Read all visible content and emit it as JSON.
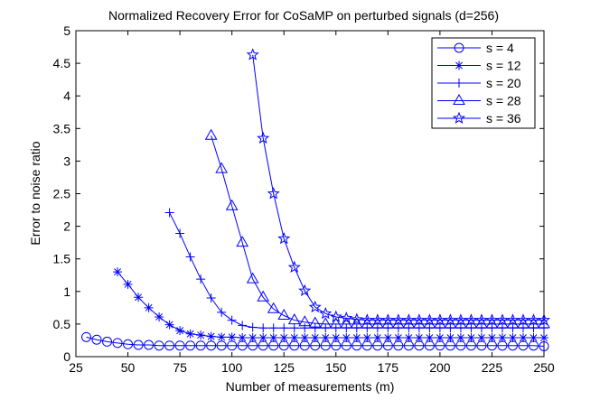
{
  "chart_data": {
    "type": "line",
    "title": "Normalized Recovery Error for CoSaMP on perturbed signals (d=256)",
    "xlabel": "Number of measurements (m)",
    "ylabel": "Error to noise ratio",
    "xlim": [
      25,
      250
    ],
    "ylim": [
      0,
      5
    ],
    "xticks": [
      25,
      50,
      75,
      100,
      125,
      150,
      175,
      200,
      225,
      250
    ],
    "yticks": [
      0,
      0.5,
      1,
      1.5,
      2,
      2.5,
      3,
      3.5,
      4,
      4.5,
      5
    ],
    "grid": false,
    "legend_position": "top-right",
    "color": "#0000ff",
    "series": [
      {
        "name": "s = 4",
        "marker": "circle",
        "x": [
          30,
          35,
          40,
          45,
          50,
          55,
          60,
          65,
          70,
          75,
          80,
          85,
          90,
          95,
          100,
          105,
          110,
          115,
          120,
          125,
          130,
          135,
          140,
          145,
          150,
          155,
          160,
          165,
          170,
          175,
          180,
          185,
          190,
          195,
          200,
          205,
          210,
          215,
          220,
          225,
          230,
          235,
          240,
          245,
          250
        ],
        "y": [
          0.3,
          0.26,
          0.23,
          0.21,
          0.19,
          0.18,
          0.18,
          0.17,
          0.17,
          0.17,
          0.17,
          0.17,
          0.17,
          0.17,
          0.17,
          0.17,
          0.17,
          0.17,
          0.17,
          0.17,
          0.17,
          0.17,
          0.17,
          0.17,
          0.17,
          0.17,
          0.17,
          0.17,
          0.17,
          0.17,
          0.17,
          0.17,
          0.17,
          0.17,
          0.17,
          0.17,
          0.17,
          0.17,
          0.17,
          0.17,
          0.17,
          0.17,
          0.17,
          0.17,
          0.16
        ]
      },
      {
        "name": "s = 12",
        "marker": "asterisk",
        "x": [
          45,
          50,
          55,
          60,
          65,
          70,
          75,
          80,
          85,
          90,
          95,
          100,
          105,
          110,
          115,
          120,
          125,
          130,
          135,
          140,
          145,
          150,
          155,
          160,
          165,
          170,
          175,
          180,
          185,
          190,
          195,
          200,
          205,
          210,
          215,
          220,
          225,
          230,
          235,
          240,
          245,
          250
        ],
        "y": [
          1.3,
          1.11,
          0.91,
          0.75,
          0.61,
          0.49,
          0.4,
          0.35,
          0.33,
          0.31,
          0.3,
          0.3,
          0.29,
          0.29,
          0.29,
          0.29,
          0.29,
          0.29,
          0.29,
          0.29,
          0.29,
          0.29,
          0.29,
          0.29,
          0.29,
          0.29,
          0.29,
          0.29,
          0.29,
          0.29,
          0.29,
          0.29,
          0.29,
          0.29,
          0.29,
          0.29,
          0.29,
          0.29,
          0.29,
          0.29,
          0.29,
          0.29
        ]
      },
      {
        "name": "s = 20",
        "marker": "plus",
        "x": [
          70,
          75,
          80,
          85,
          90,
          95,
          100,
          105,
          110,
          115,
          120,
          125,
          130,
          135,
          140,
          145,
          150,
          155,
          160,
          165,
          170,
          175,
          180,
          185,
          190,
          195,
          200,
          205,
          210,
          215,
          220,
          225,
          230,
          235,
          240,
          245,
          250
        ],
        "y": [
          2.21,
          1.89,
          1.53,
          1.19,
          0.9,
          0.68,
          0.56,
          0.48,
          0.45,
          0.44,
          0.44,
          0.44,
          0.44,
          0.44,
          0.44,
          0.44,
          0.44,
          0.44,
          0.44,
          0.44,
          0.44,
          0.44,
          0.44,
          0.44,
          0.44,
          0.44,
          0.44,
          0.44,
          0.44,
          0.44,
          0.44,
          0.44,
          0.44,
          0.44,
          0.44,
          0.44,
          0.44
        ]
      },
      {
        "name": "s = 28",
        "marker": "triangle",
        "x": [
          90,
          95,
          100,
          105,
          110,
          115,
          120,
          125,
          130,
          135,
          140,
          145,
          150,
          155,
          160,
          165,
          170,
          175,
          180,
          185,
          190,
          195,
          200,
          205,
          210,
          215,
          220,
          225,
          230,
          235,
          240,
          245,
          250
        ],
        "y": [
          3.39,
          2.88,
          2.31,
          1.75,
          1.19,
          0.91,
          0.73,
          0.63,
          0.56,
          0.53,
          0.51,
          0.5,
          0.5,
          0.5,
          0.5,
          0.5,
          0.5,
          0.5,
          0.5,
          0.5,
          0.5,
          0.5,
          0.5,
          0.5,
          0.5,
          0.5,
          0.5,
          0.5,
          0.5,
          0.5,
          0.5,
          0.5,
          0.5
        ]
      },
      {
        "name": "s = 36",
        "marker": "star",
        "x": [
          110,
          115,
          120,
          125,
          130,
          135,
          140,
          145,
          150,
          155,
          160,
          165,
          170,
          175,
          180,
          185,
          190,
          195,
          200,
          205,
          210,
          215,
          220,
          225,
          230,
          235,
          240,
          245,
          250
        ],
        "y": [
          4.63,
          3.35,
          2.5,
          1.81,
          1.37,
          1.01,
          0.76,
          0.66,
          0.61,
          0.59,
          0.57,
          0.56,
          0.56,
          0.56,
          0.56,
          0.56,
          0.56,
          0.56,
          0.56,
          0.56,
          0.56,
          0.56,
          0.56,
          0.56,
          0.56,
          0.56,
          0.56,
          0.56,
          0.56
        ]
      }
    ]
  }
}
